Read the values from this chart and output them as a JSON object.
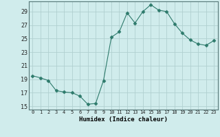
{
  "x": [
    0,
    1,
    2,
    3,
    4,
    5,
    6,
    7,
    8,
    9,
    10,
    11,
    12,
    13,
    14,
    15,
    16,
    17,
    18,
    19,
    20,
    21,
    22,
    23
  ],
  "y": [
    19.5,
    19.2,
    18.8,
    17.3,
    17.1,
    17.0,
    16.5,
    15.3,
    15.4,
    18.8,
    25.2,
    26.0,
    28.8,
    27.3,
    29.0,
    30.0,
    29.2,
    29.0,
    27.2,
    25.8,
    24.8,
    24.2,
    24.0,
    24.7
  ],
  "line_color": "#2d7a6b",
  "marker": "D",
  "marker_size": 2.5,
  "bg_color": "#d0ecec",
  "grid_color": "#b0d0d0",
  "xlabel": "Humidex (Indice chaleur)",
  "xlim": [
    -0.5,
    23.5
  ],
  "ylim": [
    14.5,
    30.5
  ],
  "yticks": [
    15,
    17,
    19,
    21,
    23,
    25,
    27,
    29
  ],
  "xtick_labels": [
    "0",
    "1",
    "2",
    "3",
    "4",
    "5",
    "6",
    "7",
    "8",
    "9",
    "10",
    "11",
    "12",
    "13",
    "14",
    "15",
    "16",
    "17",
    "18",
    "19",
    "20",
    "21",
    "22",
    "23"
  ]
}
